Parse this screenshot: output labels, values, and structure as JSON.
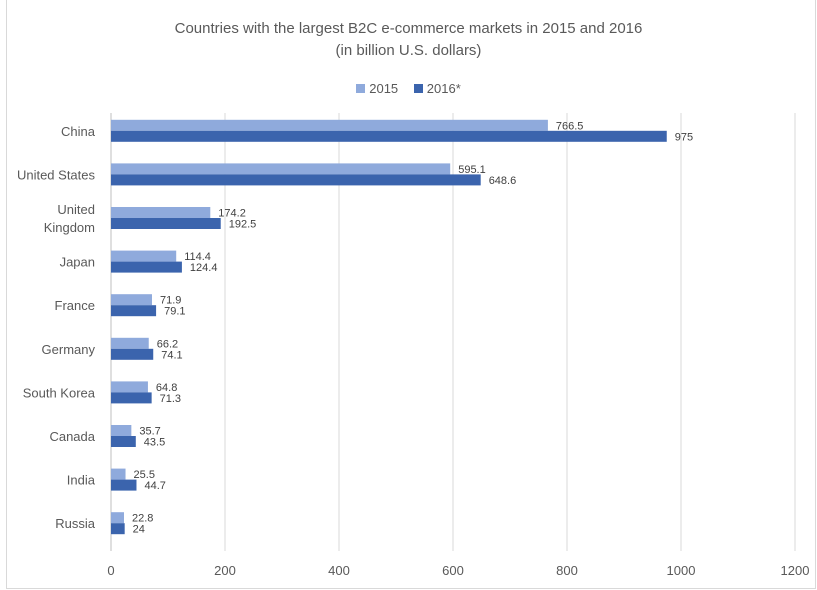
{
  "chart_data": {
    "type": "bar",
    "orientation": "horizontal",
    "title_lines": [
      "Countries with the largest B2C e-commerce markets in 2015 and 2016",
      "(in billion U.S. dollars)"
    ],
    "categories": [
      "China",
      "United States",
      "United Kingdom",
      "Japan",
      "France",
      "Germany",
      "South Korea",
      "Canada",
      "India",
      "Russia"
    ],
    "category_label_lines": [
      [
        "China"
      ],
      [
        "United States"
      ],
      [
        "United",
        "Kingdom"
      ],
      [
        "Japan"
      ],
      [
        "France"
      ],
      [
        "Germany"
      ],
      [
        "South Korea"
      ],
      [
        "Canada"
      ],
      [
        "India"
      ],
      [
        "Russia"
      ]
    ],
    "series": [
      {
        "name": "2015",
        "color": "#8faadc",
        "values": [
          766.5,
          595.1,
          174.2,
          114.4,
          71.9,
          66.2,
          64.8,
          35.7,
          25.5,
          22.8
        ]
      },
      {
        "name": "2016*",
        "color": "#3b64ad",
        "values": [
          975,
          648.6,
          192.5,
          124.4,
          79.1,
          74.1,
          71.3,
          43.5,
          44.7,
          24
        ]
      }
    ],
    "xlim": [
      0,
      1200
    ],
    "xticks": [
      0,
      200,
      400,
      600,
      800,
      1000,
      1200
    ],
    "grid": true,
    "legend_position": "top"
  }
}
